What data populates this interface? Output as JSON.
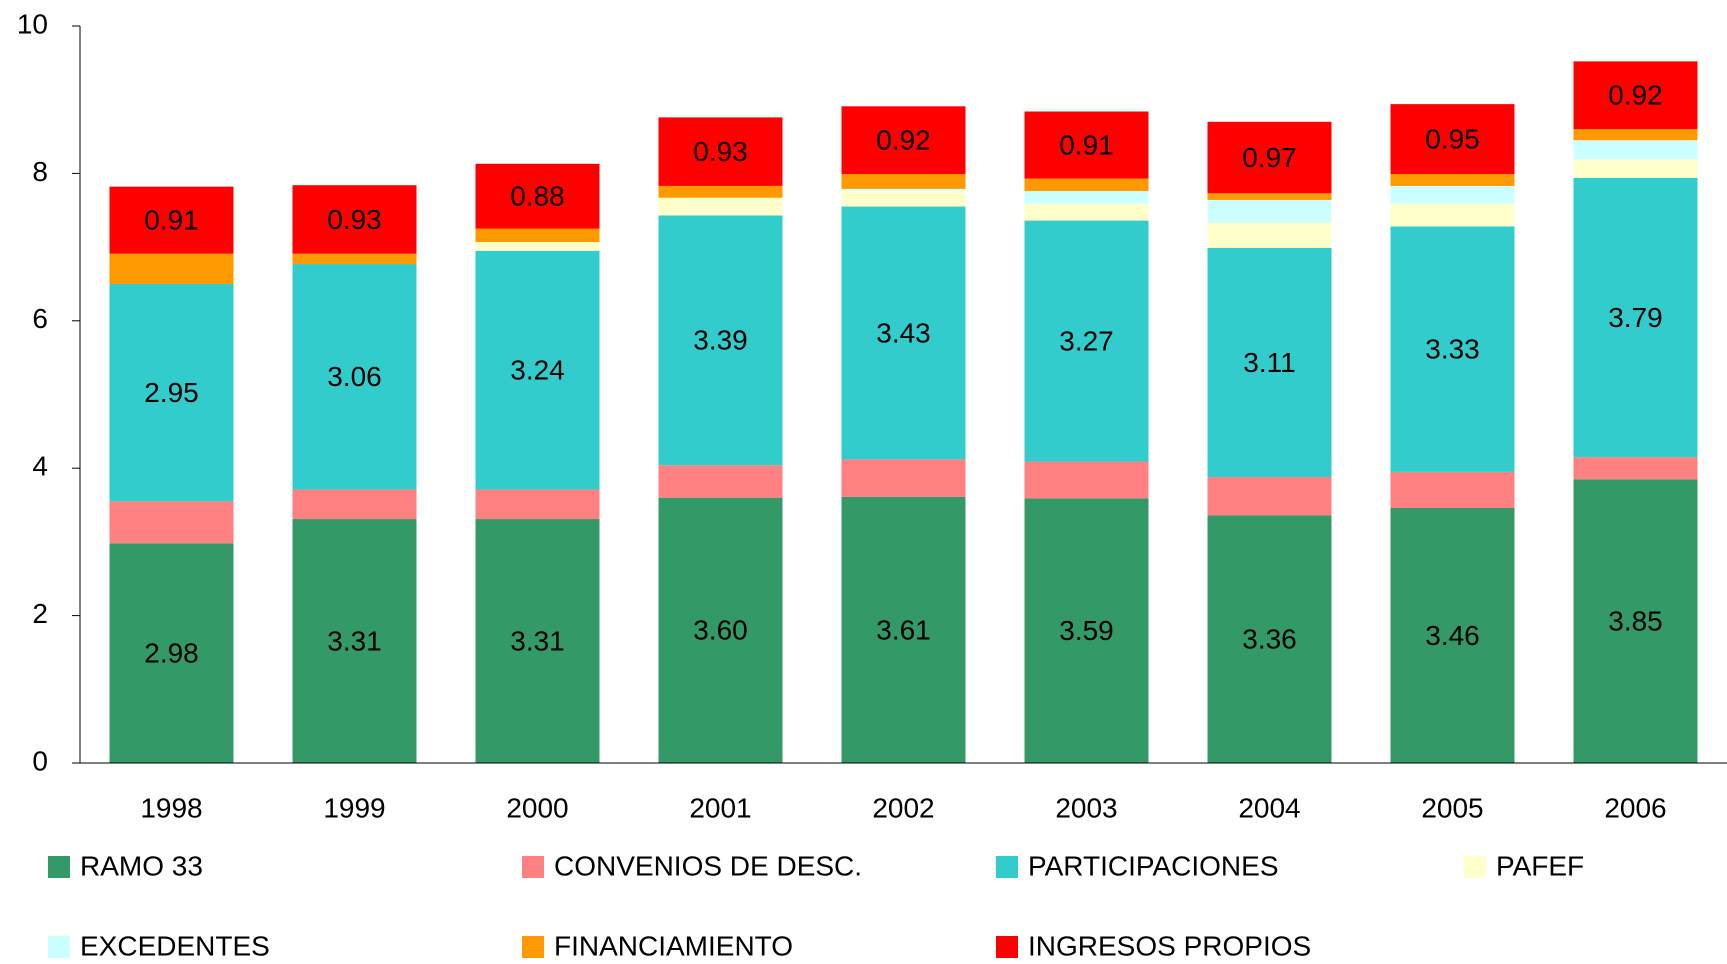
{
  "chart_data": {
    "type": "stacked_bar",
    "categories": [
      "1998",
      "1999",
      "2000",
      "2001",
      "2002",
      "2003",
      "2004",
      "2005",
      "2006"
    ],
    "ylim": [
      0,
      10
    ],
    "yticks": [
      0,
      2,
      4,
      6,
      8,
      10
    ],
    "grid": false,
    "series": [
      {
        "name": "RAMO 33",
        "color": "#339966",
        "values": [
          2.98,
          3.31,
          3.31,
          3.6,
          3.61,
          3.59,
          3.36,
          3.46,
          3.85
        ],
        "value_labels": [
          "2.98",
          "3.31",
          "3.31",
          "3.60",
          "3.61",
          "3.59",
          "3.36",
          "3.46",
          "3.85"
        ]
      },
      {
        "name": "CONVENIOS DE DESC.",
        "color": "#ff8080",
        "values": [
          0.57,
          0.4,
          0.4,
          0.44,
          0.51,
          0.5,
          0.52,
          0.49,
          0.3
        ]
      },
      {
        "name": "PARTICIPACIONES",
        "color": "#33cccc",
        "values": [
          2.95,
          3.06,
          3.24,
          3.39,
          3.43,
          3.27,
          3.11,
          3.33,
          3.79
        ],
        "value_labels": [
          "2.95",
          "3.06",
          "3.24",
          "3.39",
          "3.43",
          "3.27",
          "3.11",
          "3.33",
          "3.79"
        ]
      },
      {
        "name": "PAFEF",
        "color": "#ffffcc",
        "values": [
          0,
          0,
          0.12,
          0.24,
          0.21,
          0.23,
          0.34,
          0.31,
          0.25
        ]
      },
      {
        "name": "EXCEDENTES",
        "color": "#ccffff",
        "values": [
          0,
          0,
          0,
          0,
          0.03,
          0.17,
          0.31,
          0.24,
          0.26
        ]
      },
      {
        "name": "FINANCIAMIENTO",
        "color": "#ff9900",
        "values": [
          0.41,
          0.14,
          0.18,
          0.16,
          0.2,
          0.17,
          0.09,
          0.16,
          0.15
        ]
      },
      {
        "name": "INGRESOS PROPIOS",
        "color": "#ff0000",
        "values": [
          0.91,
          0.93,
          0.88,
          0.93,
          0.92,
          0.91,
          0.97,
          0.95,
          0.92
        ],
        "value_labels": [
          "0.91",
          "0.93",
          "0.88",
          "0.93",
          "0.92",
          "0.91",
          "0.97",
          "0.95",
          "0.92"
        ]
      }
    ]
  }
}
